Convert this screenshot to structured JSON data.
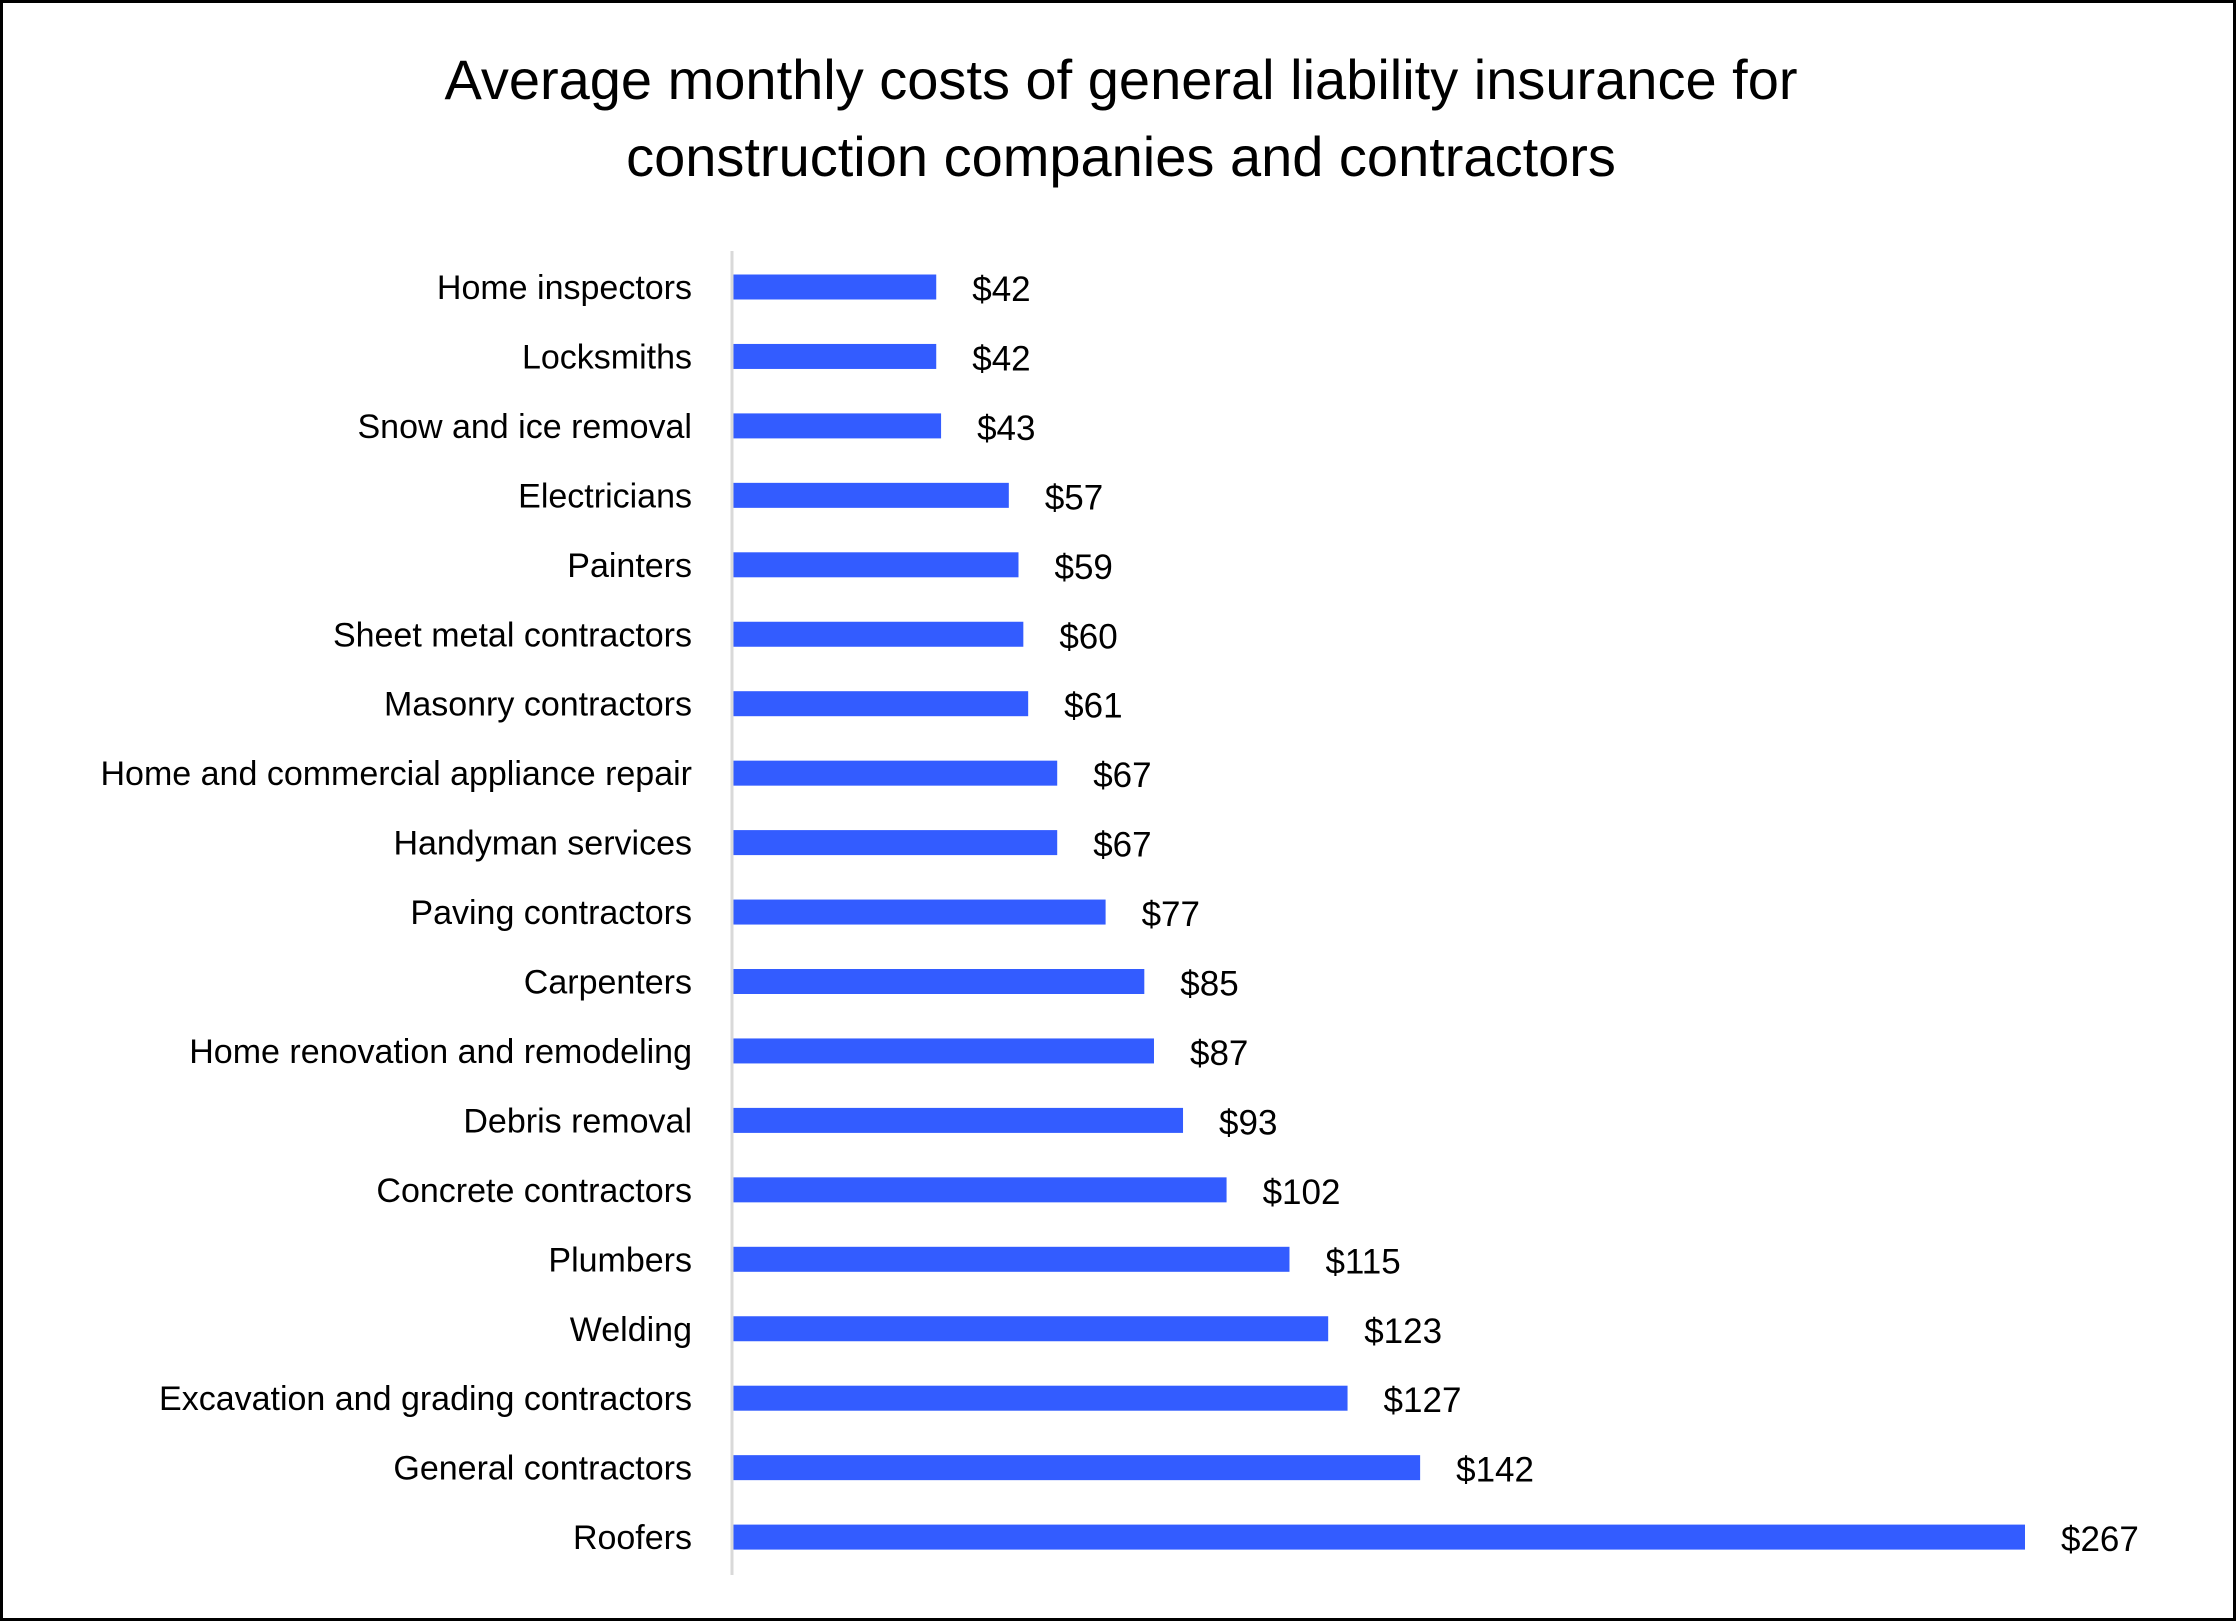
{
  "chart_data": {
    "type": "bar",
    "orientation": "horizontal",
    "title": "Average monthly costs of general liability insurance for construction companies and contractors",
    "title_lines": [
      "Average monthly costs of general liability insurance for",
      "construction companies and contractors"
    ],
    "categories": [
      "Home inspectors",
      "Locksmiths",
      "Snow and ice removal",
      "Electricians",
      "Painters",
      "Sheet metal contractors",
      "Masonry contractors",
      "Home and commercial appliance repair",
      "Handyman services",
      "Paving contractors",
      "Carpenters",
      "Home renovation and remodeling",
      "Debris removal",
      "Concrete contractors",
      "Plumbers",
      "Welding",
      "Excavation and grading contractors",
      "General contractors",
      "Roofers"
    ],
    "values": [
      42,
      42,
      43,
      57,
      59,
      60,
      61,
      67,
      67,
      77,
      85,
      87,
      93,
      102,
      115,
      123,
      127,
      142,
      267
    ],
    "data_labels": [
      "$42",
      "$42",
      "$43",
      "$57",
      "$59",
      "$60",
      "$61",
      "$67",
      "$67",
      "$77",
      "$85",
      "$87",
      "$93",
      "$102",
      "$115",
      "$123",
      "$127",
      "$142",
      "$267"
    ],
    "xlabel": "",
    "ylabel": "",
    "xlim": [
      0,
      267
    ],
    "grid": false,
    "legend": "none",
    "bar_color": "#335CFF",
    "axis_color": "#D9D9D9"
  }
}
